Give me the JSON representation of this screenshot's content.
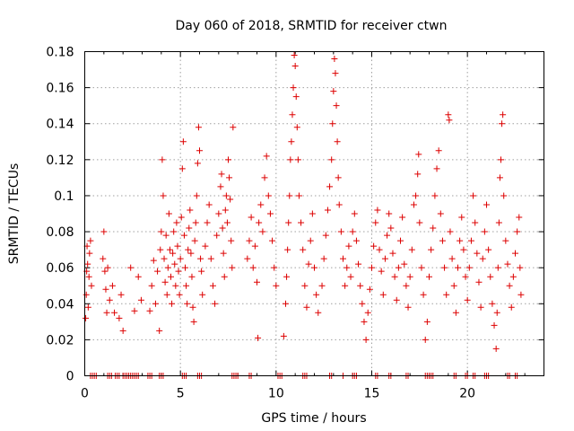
{
  "chart_data": {
    "type": "scatter",
    "title": "Day 060 of 2018, SRMTID for receiver ctwn",
    "xlabel": "GPS time / hours",
    "ylabel": "SRMTID / TECUs",
    "xlim": [
      0,
      24
    ],
    "ylim": [
      0,
      0.18
    ],
    "grid": true,
    "marker": "+",
    "marker_color": "#dd0000",
    "x_ticks": [
      0,
      5,
      10,
      15,
      20
    ],
    "x_tick_labels": [
      "0",
      "5",
      "10",
      "15",
      "20"
    ],
    "y_ticks": [
      0,
      0.02,
      0.04,
      0.06,
      0.08,
      0.1,
      0.12,
      0.14,
      0.16,
      0.18
    ],
    "y_tick_labels": [
      "0",
      "0.02",
      "0.04",
      "0.06",
      "0.08",
      "0.1",
      "0.12",
      "0.14",
      "0.16",
      "0.18"
    ],
    "series": [
      {
        "name": "SRMTID",
        "points": [
          [
            0.05,
            0.032
          ],
          [
            0.08,
            0.045
          ],
          [
            0.1,
            0.058
          ],
          [
            0.12,
            0.072
          ],
          [
            0.15,
            0.062
          ],
          [
            0.18,
            0.038
          ],
          [
            0.22,
            0.055
          ],
          [
            0.25,
            0.068
          ],
          [
            0.3,
            0.075
          ],
          [
            0.35,
            0.05
          ],
          [
            0.95,
            0.065
          ],
          [
            1.0,
            0.08
          ],
          [
            1.05,
            0.058
          ],
          [
            1.1,
            0.048
          ],
          [
            1.15,
            0.035
          ],
          [
            1.2,
            0.06
          ],
          [
            1.3,
            0.042
          ],
          [
            1.45,
            0.05
          ],
          [
            1.55,
            0.035
          ],
          [
            1.8,
            0.032
          ],
          [
            1.9,
            0.045
          ],
          [
            2.0,
            0.025
          ],
          [
            2.4,
            0.06
          ],
          [
            2.6,
            0.036
          ],
          [
            2.8,
            0.055
          ],
          [
            2.95,
            0.042
          ],
          [
            3.4,
            0.036
          ],
          [
            3.5,
            0.05
          ],
          [
            3.6,
            0.064
          ],
          [
            3.7,
            0.04
          ],
          [
            3.8,
            0.058
          ],
          [
            3.9,
            0.025
          ],
          [
            3.95,
            0.07
          ],
          [
            4.0,
            0.08
          ],
          [
            4.05,
            0.12
          ],
          [
            4.1,
            0.1
          ],
          [
            4.15,
            0.065
          ],
          [
            4.2,
            0.052
          ],
          [
            4.25,
            0.078
          ],
          [
            4.3,
            0.045
          ],
          [
            4.35,
            0.06
          ],
          [
            4.4,
            0.09
          ],
          [
            4.45,
            0.07
          ],
          [
            4.5,
            0.055
          ],
          [
            4.55,
            0.04
          ],
          [
            4.6,
            0.068
          ],
          [
            4.65,
            0.08
          ],
          [
            4.7,
            0.062
          ],
          [
            4.75,
            0.05
          ],
          [
            4.8,
            0.085
          ],
          [
            4.85,
            0.072
          ],
          [
            4.9,
            0.058
          ],
          [
            4.95,
            0.045
          ],
          [
            5.0,
            0.065
          ],
          [
            5.05,
            0.088
          ],
          [
            5.1,
            0.115
          ],
          [
            5.15,
            0.13
          ],
          [
            5.2,
            0.078
          ],
          [
            5.25,
            0.06
          ],
          [
            5.3,
            0.05
          ],
          [
            5.35,
            0.04
          ],
          [
            5.4,
            0.07
          ],
          [
            5.45,
            0.082
          ],
          [
            5.5,
            0.092
          ],
          [
            5.55,
            0.068
          ],
          [
            5.6,
            0.055
          ],
          [
            5.65,
            0.038
          ],
          [
            5.7,
            0.03
          ],
          [
            5.75,
            0.075
          ],
          [
            5.8,
            0.085
          ],
          [
            5.85,
            0.1
          ],
          [
            5.9,
            0.118
          ],
          [
            5.95,
            0.138
          ],
          [
            6.0,
            0.125
          ],
          [
            6.05,
            0.065
          ],
          [
            6.1,
            0.058
          ],
          [
            6.15,
            0.045
          ],
          [
            6.3,
            0.072
          ],
          [
            6.4,
            0.085
          ],
          [
            6.5,
            0.095
          ],
          [
            6.6,
            0.065
          ],
          [
            6.7,
            0.05
          ],
          [
            6.8,
            0.04
          ],
          [
            6.9,
            0.078
          ],
          [
            7.0,
            0.09
          ],
          [
            7.1,
            0.105
          ],
          [
            7.15,
            0.112
          ],
          [
            7.2,
            0.082
          ],
          [
            7.25,
            0.068
          ],
          [
            7.3,
            0.055
          ],
          [
            7.35,
            0.092
          ],
          [
            7.4,
            0.1
          ],
          [
            7.45,
            0.085
          ],
          [
            7.5,
            0.12
          ],
          [
            7.55,
            0.11
          ],
          [
            7.6,
            0.098
          ],
          [
            7.65,
            0.075
          ],
          [
            7.7,
            0.06
          ],
          [
            7.75,
            0.138
          ],
          [
            8.5,
            0.065
          ],
          [
            8.6,
            0.075
          ],
          [
            8.7,
            0.088
          ],
          [
            8.8,
            0.06
          ],
          [
            8.9,
            0.072
          ],
          [
            9.0,
            0.052
          ],
          [
            9.05,
            0.021
          ],
          [
            9.1,
            0.085
          ],
          [
            9.2,
            0.095
          ],
          [
            9.3,
            0.08
          ],
          [
            9.4,
            0.11
          ],
          [
            9.5,
            0.122
          ],
          [
            9.6,
            0.1
          ],
          [
            9.7,
            0.09
          ],
          [
            9.8,
            0.075
          ],
          [
            9.9,
            0.06
          ],
          [
            10.0,
            0.05
          ],
          [
            10.4,
            0.022
          ],
          [
            10.5,
            0.04
          ],
          [
            10.55,
            0.055
          ],
          [
            10.6,
            0.07
          ],
          [
            10.65,
            0.085
          ],
          [
            10.7,
            0.1
          ],
          [
            10.75,
            0.12
          ],
          [
            10.8,
            0.13
          ],
          [
            10.85,
            0.145
          ],
          [
            10.9,
            0.16
          ],
          [
            10.95,
            0.178
          ],
          [
            11.0,
            0.172
          ],
          [
            11.05,
            0.155
          ],
          [
            11.1,
            0.138
          ],
          [
            11.15,
            0.12
          ],
          [
            11.2,
            0.1
          ],
          [
            11.3,
            0.085
          ],
          [
            11.4,
            0.07
          ],
          [
            11.5,
            0.05
          ],
          [
            11.6,
            0.038
          ],
          [
            11.7,
            0.062
          ],
          [
            11.8,
            0.075
          ],
          [
            11.9,
            0.09
          ],
          [
            12.0,
            0.06
          ],
          [
            12.1,
            0.045
          ],
          [
            12.2,
            0.035
          ],
          [
            12.4,
            0.05
          ],
          [
            12.5,
            0.065
          ],
          [
            12.6,
            0.078
          ],
          [
            12.7,
            0.092
          ],
          [
            12.8,
            0.105
          ],
          [
            12.9,
            0.12
          ],
          [
            12.95,
            0.14
          ],
          [
            13.0,
            0.158
          ],
          [
            13.05,
            0.176
          ],
          [
            13.1,
            0.168
          ],
          [
            13.15,
            0.15
          ],
          [
            13.2,
            0.13
          ],
          [
            13.25,
            0.11
          ],
          [
            13.3,
            0.095
          ],
          [
            13.4,
            0.08
          ],
          [
            13.5,
            0.065
          ],
          [
            13.6,
            0.05
          ],
          [
            13.7,
            0.06
          ],
          [
            13.8,
            0.072
          ],
          [
            13.9,
            0.055
          ],
          [
            14.0,
            0.08
          ],
          [
            14.1,
            0.09
          ],
          [
            14.2,
            0.075
          ],
          [
            14.3,
            0.062
          ],
          [
            14.4,
            0.05
          ],
          [
            14.5,
            0.04
          ],
          [
            14.6,
            0.03
          ],
          [
            14.7,
            0.02
          ],
          [
            14.8,
            0.035
          ],
          [
            14.9,
            0.048
          ],
          [
            15.0,
            0.06
          ],
          [
            15.1,
            0.072
          ],
          [
            15.2,
            0.085
          ],
          [
            15.3,
            0.092
          ],
          [
            15.4,
            0.07
          ],
          [
            15.5,
            0.058
          ],
          [
            15.6,
            0.045
          ],
          [
            15.7,
            0.065
          ],
          [
            15.8,
            0.078
          ],
          [
            15.9,
            0.09
          ],
          [
            16.0,
            0.082
          ],
          [
            16.1,
            0.068
          ],
          [
            16.2,
            0.055
          ],
          [
            16.3,
            0.042
          ],
          [
            16.4,
            0.06
          ],
          [
            16.5,
            0.075
          ],
          [
            16.6,
            0.088
          ],
          [
            16.7,
            0.062
          ],
          [
            16.8,
            0.05
          ],
          [
            16.9,
            0.038
          ],
          [
            17.0,
            0.055
          ],
          [
            17.1,
            0.07
          ],
          [
            17.2,
            0.095
          ],
          [
            17.3,
            0.1
          ],
          [
            17.4,
            0.112
          ],
          [
            17.45,
            0.123
          ],
          [
            17.5,
            0.085
          ],
          [
            17.6,
            0.06
          ],
          [
            17.7,
            0.045
          ],
          [
            17.8,
            0.02
          ],
          [
            17.9,
            0.03
          ],
          [
            18.0,
            0.055
          ],
          [
            18.1,
            0.07
          ],
          [
            18.2,
            0.082
          ],
          [
            18.3,
            0.1
          ],
          [
            18.4,
            0.115
          ],
          [
            18.5,
            0.125
          ],
          [
            18.6,
            0.09
          ],
          [
            18.7,
            0.075
          ],
          [
            18.8,
            0.06
          ],
          [
            18.9,
            0.045
          ],
          [
            19.0,
            0.145
          ],
          [
            19.05,
            0.142
          ],
          [
            19.1,
            0.08
          ],
          [
            19.2,
            0.065
          ],
          [
            19.3,
            0.05
          ],
          [
            19.4,
            0.035
          ],
          [
            19.5,
            0.06
          ],
          [
            19.6,
            0.075
          ],
          [
            19.7,
            0.088
          ],
          [
            19.8,
            0.07
          ],
          [
            19.9,
            0.055
          ],
          [
            20.0,
            0.042
          ],
          [
            20.1,
            0.06
          ],
          [
            20.2,
            0.075
          ],
          [
            20.3,
            0.1
          ],
          [
            20.4,
            0.085
          ],
          [
            20.5,
            0.068
          ],
          [
            20.6,
            0.052
          ],
          [
            20.7,
            0.038
          ],
          [
            20.8,
            0.065
          ],
          [
            20.9,
            0.08
          ],
          [
            21.0,
            0.095
          ],
          [
            21.1,
            0.07
          ],
          [
            21.2,
            0.055
          ],
          [
            21.3,
            0.04
          ],
          [
            21.4,
            0.028
          ],
          [
            21.5,
            0.015
          ],
          [
            21.55,
            0.035
          ],
          [
            21.6,
            0.06
          ],
          [
            21.65,
            0.085
          ],
          [
            21.7,
            0.11
          ],
          [
            21.75,
            0.12
          ],
          [
            21.8,
            0.14
          ],
          [
            21.85,
            0.145
          ],
          [
            21.9,
            0.1
          ],
          [
            22.0,
            0.075
          ],
          [
            22.1,
            0.062
          ],
          [
            22.2,
            0.05
          ],
          [
            22.3,
            0.038
          ],
          [
            22.4,
            0.055
          ],
          [
            22.5,
            0.068
          ],
          [
            22.6,
            0.08
          ],
          [
            22.7,
            0.088
          ],
          [
            22.75,
            0.06
          ],
          [
            22.8,
            0.045
          ]
        ],
        "zero_times": [
          0.3,
          0.4,
          0.5,
          0.6,
          1.2,
          1.3,
          1.4,
          1.6,
          1.7,
          1.8,
          2.0,
          2.1,
          2.2,
          2.3,
          2.4,
          2.5,
          2.6,
          2.7,
          2.8,
          3.3,
          3.4,
          3.5,
          3.9,
          4.0,
          4.1,
          5.1,
          5.2,
          5.3,
          5.9,
          6.0,
          6.1,
          7.7,
          7.8,
          7.9,
          8.0,
          8.6,
          8.7,
          10.1,
          10.2,
          10.3,
          11.4,
          11.5,
          11.6,
          12.8,
          12.9,
          13.5,
          14.0,
          14.1,
          14.2,
          15.2,
          15.3,
          15.9,
          16.0,
          16.8,
          16.9,
          17.8,
          17.9,
          18.0,
          18.1,
          18.2,
          19.3,
          19.4,
          19.9,
          20.0,
          20.3,
          20.4,
          20.9,
          21.0,
          21.1,
          22.1,
          22.2,
          22.5,
          22.6
        ]
      }
    ]
  }
}
